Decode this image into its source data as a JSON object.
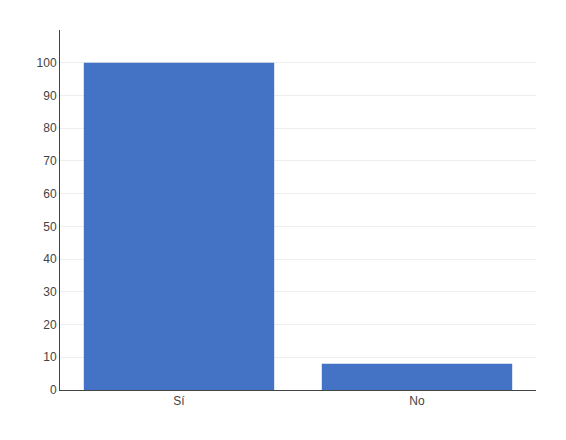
{
  "chart_data": {
    "type": "bar",
    "categories": [
      "Sí",
      "No"
    ],
    "values": [
      100,
      8
    ],
    "color": "#4472C4",
    "ylim": [
      0,
      110
    ],
    "yticks": [
      0,
      10,
      20,
      30,
      40,
      50,
      60,
      70,
      80,
      90,
      100
    ],
    "grid": true
  }
}
